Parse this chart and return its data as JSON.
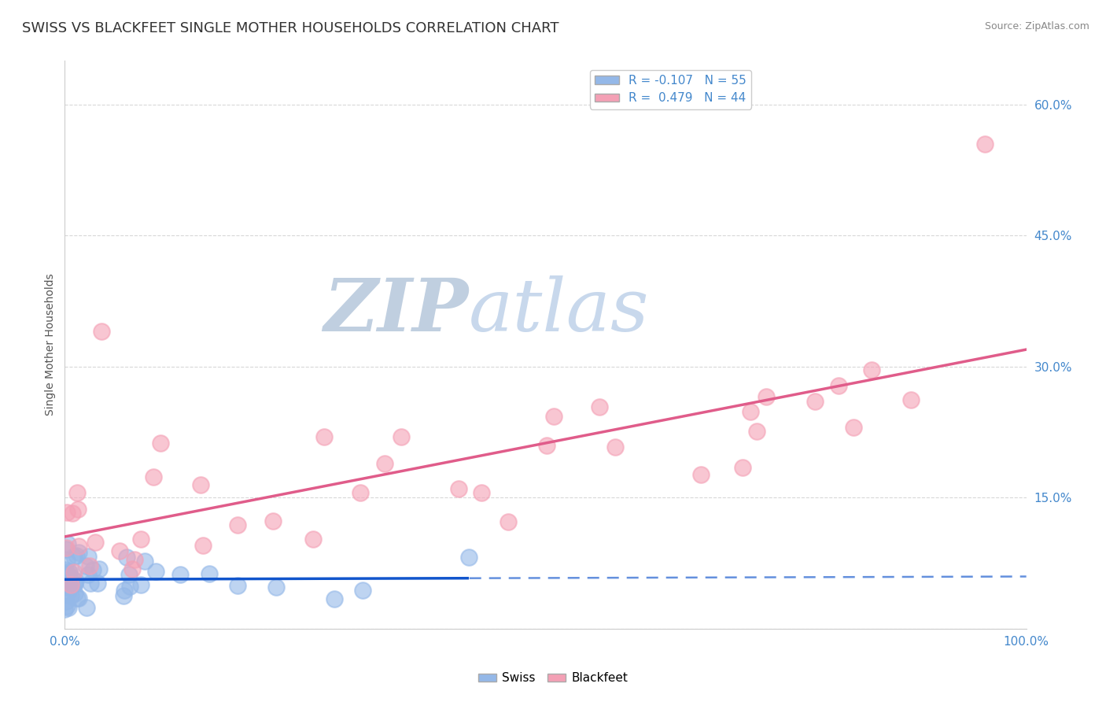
{
  "title": "SWISS VS BLACKFEET SINGLE MOTHER HOUSEHOLDS CORRELATION CHART",
  "source": "Source: ZipAtlas.com",
  "ylabel": "Single Mother Households",
  "xlim": [
    0,
    1.0
  ],
  "ylim": [
    0,
    0.65
  ],
  "xticks": [
    0.0,
    0.1,
    0.2,
    0.3,
    0.4,
    0.5,
    0.6,
    0.7,
    0.8,
    0.9,
    1.0
  ],
  "yticks": [
    0.0,
    0.15,
    0.3,
    0.45,
    0.6
  ],
  "yticklabels": [
    "",
    "15.0%",
    "30.0%",
    "45.0%",
    "60.0%"
  ],
  "swiss_R": -0.107,
  "swiss_N": 55,
  "blackfeet_R": 0.479,
  "blackfeet_N": 44,
  "swiss_color": "#94b8e8",
  "blackfeet_color": "#f4a0b5",
  "swiss_line_color": "#1155cc",
  "blackfeet_line_color": "#e05c8a",
  "background_color": "#ffffff",
  "grid_color": "#c8c8c8",
  "watermark_zip": "ZIP",
  "watermark_atlas": "atlas",
  "watermark_color_zip": "#b0c8e8",
  "watermark_color_atlas": "#b8cce4",
  "title_fontsize": 13,
  "label_fontsize": 10,
  "tick_fontsize": 11,
  "legend_fontsize": 11,
  "source_fontsize": 9
}
